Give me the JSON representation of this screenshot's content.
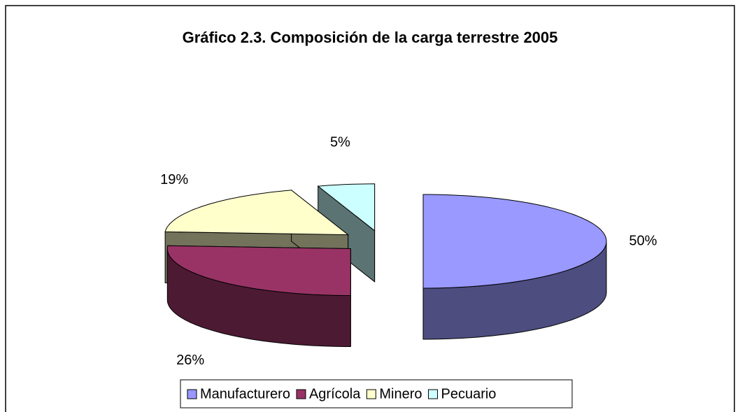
{
  "chart_data": {
    "type": "pie3d",
    "title": "Gráfico 2.3. Composición de la carga terrestre 2005",
    "categories": [
      "Manufacturero",
      "Agrícola",
      "Minero",
      "Pecuario"
    ],
    "values": [
      50,
      26,
      19,
      5
    ],
    "value_labels": [
      "50%",
      "26%",
      "19%",
      "5%"
    ],
    "colors": [
      "#9999ff",
      "#993366",
      "#ffffcc",
      "#ccffff"
    ],
    "legend": "bottom"
  }
}
